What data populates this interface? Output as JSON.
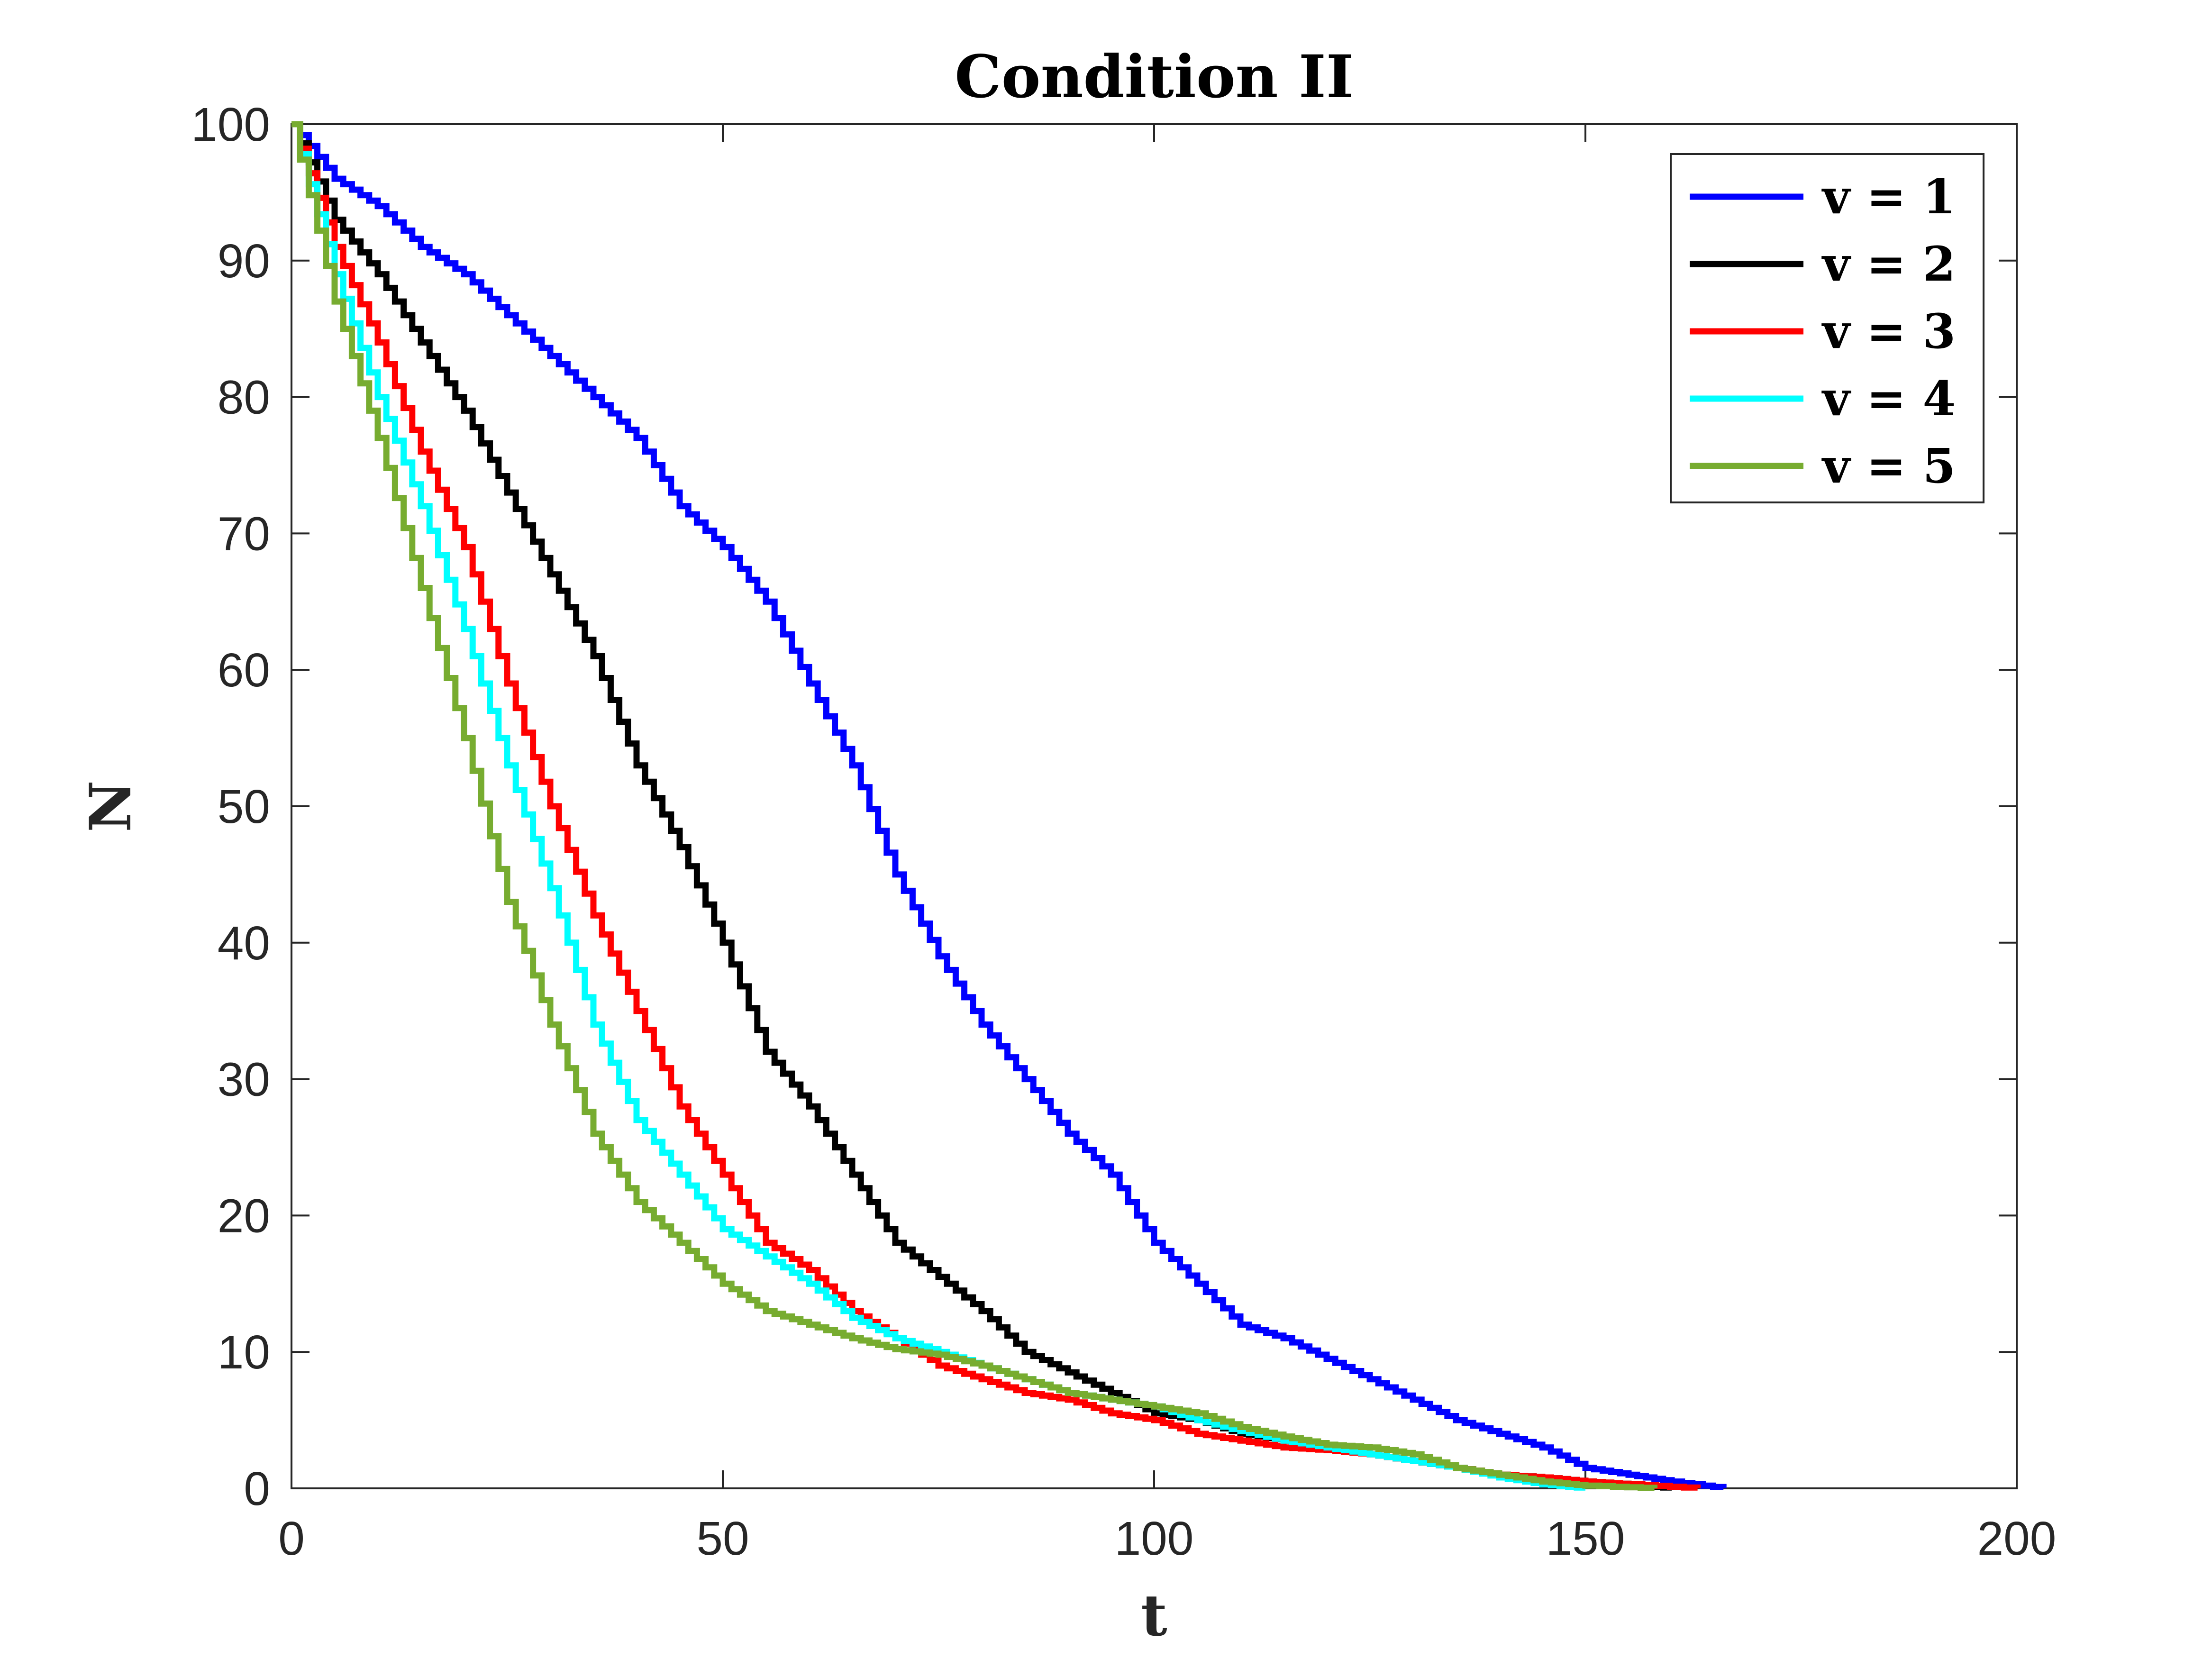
{
  "chart_data": {
    "type": "line",
    "title": "Condition II",
    "xlabel": "t",
    "ylabel": "N",
    "xlim": [
      0,
      200
    ],
    "ylim": [
      0,
      100
    ],
    "xticks": [
      0,
      50,
      100,
      150,
      200
    ],
    "yticks": [
      0,
      10,
      20,
      30,
      40,
      50,
      60,
      70,
      80,
      90,
      100
    ],
    "grid": false,
    "legend_position": "top-right",
    "series": [
      {
        "name": "v = 1",
        "color": "#0000ff",
        "points": [
          [
            0,
            100
          ],
          [
            5,
            96
          ],
          [
            10,
            94
          ],
          [
            15,
            91
          ],
          [
            20,
            89
          ],
          [
            25,
            86
          ],
          [
            30,
            83
          ],
          [
            35,
            80
          ],
          [
            40,
            77
          ],
          [
            45,
            72
          ],
          [
            50,
            69
          ],
          [
            55,
            65
          ],
          [
            60,
            59
          ],
          [
            65,
            53
          ],
          [
            70,
            45
          ],
          [
            75,
            39
          ],
          [
            80,
            34
          ],
          [
            85,
            30
          ],
          [
            90,
            26
          ],
          [
            95,
            23
          ],
          [
            100,
            18
          ],
          [
            105,
            15
          ],
          [
            110,
            12
          ],
          [
            115,
            11
          ],
          [
            120,
            9.5
          ],
          [
            125,
            8
          ],
          [
            130,
            6.5
          ],
          [
            135,
            5
          ],
          [
            140,
            4
          ],
          [
            145,
            3
          ],
          [
            150,
            1.5
          ],
          [
            155,
            1
          ],
          [
            160,
            0.5
          ],
          [
            166,
            0
          ]
        ]
      },
      {
        "name": "v = 2",
        "color": "#000000",
        "points": [
          [
            0,
            100
          ],
          [
            5,
            93
          ],
          [
            10,
            89
          ],
          [
            15,
            84
          ],
          [
            20,
            79
          ],
          [
            25,
            73
          ],
          [
            30,
            67
          ],
          [
            35,
            61
          ],
          [
            40,
            53
          ],
          [
            45,
            47
          ],
          [
            50,
            40
          ],
          [
            55,
            32
          ],
          [
            60,
            28
          ],
          [
            65,
            23
          ],
          [
            70,
            18
          ],
          [
            75,
            15.5
          ],
          [
            80,
            13
          ],
          [
            85,
            10
          ],
          [
            90,
            8.5
          ],
          [
            95,
            7
          ],
          [
            100,
            5.5
          ],
          [
            105,
            5
          ],
          [
            110,
            4
          ],
          [
            115,
            3.5
          ],
          [
            120,
            3
          ],
          [
            125,
            2.5
          ],
          [
            130,
            2
          ],
          [
            135,
            1.5
          ],
          [
            140,
            1
          ],
          [
            145,
            0.8
          ],
          [
            150,
            0.5
          ],
          [
            155,
            0.3
          ],
          [
            160,
            0
          ]
        ]
      },
      {
        "name": "v = 3",
        "color": "#ff0000",
        "points": [
          [
            0,
            100
          ],
          [
            5,
            91
          ],
          [
            10,
            84
          ],
          [
            15,
            76
          ],
          [
            20,
            69
          ],
          [
            25,
            59
          ],
          [
            30,
            50
          ],
          [
            35,
            42
          ],
          [
            40,
            35
          ],
          [
            45,
            28
          ],
          [
            50,
            23
          ],
          [
            55,
            18
          ],
          [
            60,
            16
          ],
          [
            65,
            13
          ],
          [
            70,
            11
          ],
          [
            75,
            9
          ],
          [
            80,
            8
          ],
          [
            85,
            7
          ],
          [
            90,
            6.5
          ],
          [
            95,
            5.5
          ],
          [
            100,
            5
          ],
          [
            105,
            4
          ],
          [
            110,
            3.5
          ],
          [
            115,
            3
          ],
          [
            120,
            2.8
          ],
          [
            125,
            2.5
          ],
          [
            130,
            2
          ],
          [
            135,
            1.5
          ],
          [
            140,
            1
          ],
          [
            145,
            0.8
          ],
          [
            150,
            0.5
          ],
          [
            155,
            0.3
          ],
          [
            163,
            0
          ]
        ]
      },
      {
        "name": "v = 4",
        "color": "#00ffff",
        "points": [
          [
            0,
            100
          ],
          [
            5,
            89
          ],
          [
            10,
            80
          ],
          [
            15,
            72
          ],
          [
            20,
            63
          ],
          [
            25,
            53
          ],
          [
            30,
            44
          ],
          [
            35,
            34
          ],
          [
            40,
            27
          ],
          [
            45,
            23
          ],
          [
            50,
            19
          ],
          [
            55,
            17
          ],
          [
            60,
            15
          ],
          [
            65,
            12.5
          ],
          [
            70,
            11
          ],
          [
            75,
            10
          ],
          [
            80,
            9
          ],
          [
            85,
            8
          ],
          [
            90,
            7
          ],
          [
            95,
            6.5
          ],
          [
            100,
            6
          ],
          [
            105,
            5
          ],
          [
            110,
            4.2
          ],
          [
            115,
            3.5
          ],
          [
            120,
            3
          ],
          [
            125,
            2.5
          ],
          [
            130,
            2
          ],
          [
            135,
            1.5
          ],
          [
            140,
            0.8
          ],
          [
            145,
            0.3
          ],
          [
            150,
            0
          ]
        ]
      },
      {
        "name": "v = 5",
        "color": "#77ac30",
        "points": [
          [
            0,
            100
          ],
          [
            5,
            87
          ],
          [
            10,
            77
          ],
          [
            15,
            66
          ],
          [
            20,
            55
          ],
          [
            25,
            43
          ],
          [
            30,
            34
          ],
          [
            35,
            26
          ],
          [
            40,
            21
          ],
          [
            45,
            18
          ],
          [
            50,
            15
          ],
          [
            55,
            13
          ],
          [
            60,
            12
          ],
          [
            65,
            11
          ],
          [
            70,
            10.2
          ],
          [
            75,
            9.8
          ],
          [
            80,
            9
          ],
          [
            85,
            8
          ],
          [
            90,
            7
          ],
          [
            95,
            6.5
          ],
          [
            100,
            6
          ],
          [
            105,
            5.5
          ],
          [
            110,
            4.5
          ],
          [
            115,
            3.8
          ],
          [
            120,
            3.2
          ],
          [
            125,
            3
          ],
          [
            130,
            2.5
          ],
          [
            135,
            1.5
          ],
          [
            140,
            1
          ],
          [
            145,
            0.5
          ],
          [
            150,
            0.2
          ],
          [
            158,
            0
          ]
        ]
      }
    ]
  }
}
